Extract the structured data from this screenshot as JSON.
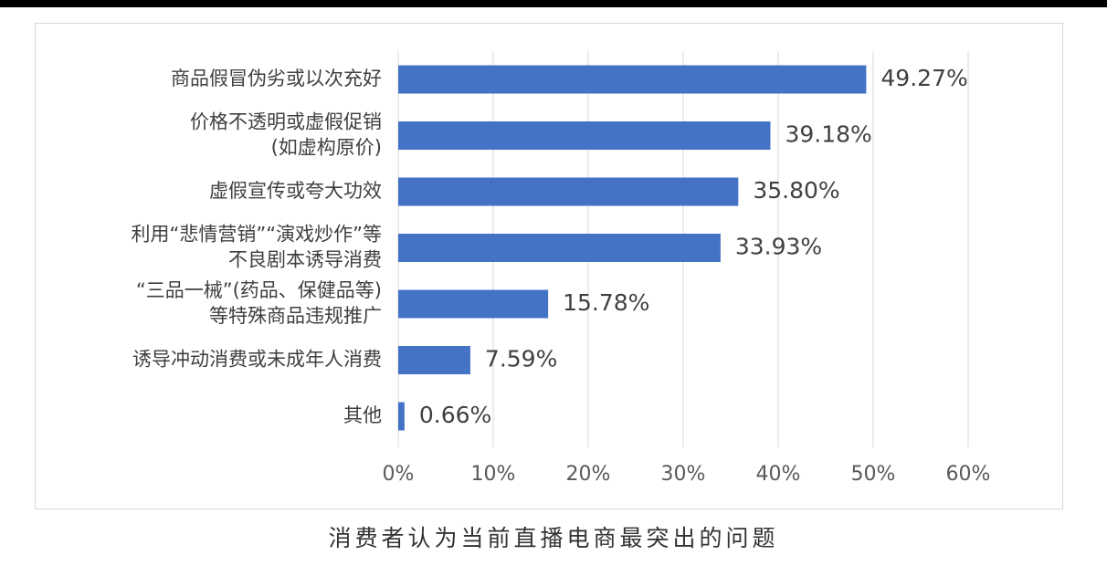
{
  "chart_data": {
    "type": "bar",
    "orientation": "horizontal",
    "categories": [
      [
        "商品假冒伪劣或以次充好"
      ],
      [
        "价格不透明或虚假促销",
        "(如虚构原价)"
      ],
      [
        "虚假宣传或夸大功效"
      ],
      [
        "利用“悲情营销”“演戏炒作”等",
        "不良剧本诱导消费"
      ],
      [
        "“三品一械”(药品、保健品等)",
        "等特殊商品违规推广"
      ],
      [
        "诱导冲动消费或未成年人消费"
      ],
      [
        "其他"
      ]
    ],
    "values": [
      49.27,
      39.18,
      35.8,
      33.93,
      15.78,
      7.59,
      0.66
    ],
    "value_labels": [
      "49.27%",
      "39.18%",
      "35.80%",
      "33.93%",
      "15.78%",
      "7.59%",
      "0.66%"
    ],
    "xlim": [
      0,
      60
    ],
    "xticks": [
      "0%",
      "10%",
      "20%",
      "30%",
      "40%",
      "50%",
      "60%"
    ],
    "grid": true,
    "bar_color": "#4472C4",
    "caption": "消费者认为当前直播电商最突出的问题"
  }
}
